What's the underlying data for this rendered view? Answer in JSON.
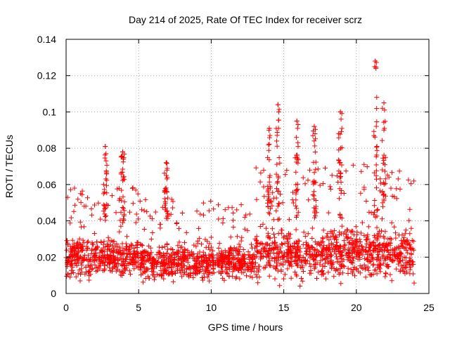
{
  "chart_data": {
    "type": "scatter",
    "title": "Day 214 of 2025, Rate Of TEC Index for receiver scrz",
    "xlabel": "GPS time / hours",
    "ylabel": "ROTI / TECUs",
    "xlim": [
      0,
      25
    ],
    "ylim": [
      0,
      0.14
    ],
    "xticks": [
      0,
      5,
      10,
      15,
      20,
      25
    ],
    "xtick_labels": [
      "0",
      "5",
      "10",
      "15",
      "20",
      "25"
    ],
    "yticks": [
      0,
      0.02,
      0.04,
      0.06,
      0.08,
      0.1,
      0.12,
      0.14
    ],
    "ytick_labels": [
      "0",
      "0.02",
      "0.04",
      "0.06",
      "0.08",
      "0.1",
      "0.12",
      "0.14"
    ],
    "grid": true,
    "marker": "+",
    "color": "#ff0000",
    "series": [
      {
        "name": "ROTI",
        "description_ranges": [
          {
            "x_start": 0,
            "x_end": 5,
            "typical_low": 0.008,
            "typical_high": 0.045,
            "peak": 0.081
          },
          {
            "x_start": 5,
            "x_end": 10,
            "typical_low": 0.007,
            "typical_high": 0.04,
            "peak": 0.072
          },
          {
            "x_start": 10,
            "x_end": 13,
            "typical_low": 0.008,
            "typical_high": 0.038,
            "peak": 0.048
          },
          {
            "x_start": 13,
            "x_end": 24,
            "typical_low": 0.007,
            "typical_high": 0.055,
            "peak": 0.128
          }
        ],
        "peaks": [
          {
            "x": 2.7,
            "y": 0.081
          },
          {
            "x": 3.9,
            "y": 0.078
          },
          {
            "x": 6.9,
            "y": 0.072
          },
          {
            "x": 14.0,
            "y": 0.091
          },
          {
            "x": 14.6,
            "y": 0.104
          },
          {
            "x": 15.9,
            "y": 0.095
          },
          {
            "x": 17.1,
            "y": 0.092
          },
          {
            "x": 18.9,
            "y": 0.1
          },
          {
            "x": 21.3,
            "y": 0.128
          },
          {
            "x": 21.9,
            "y": 0.105
          }
        ]
      }
    ]
  }
}
